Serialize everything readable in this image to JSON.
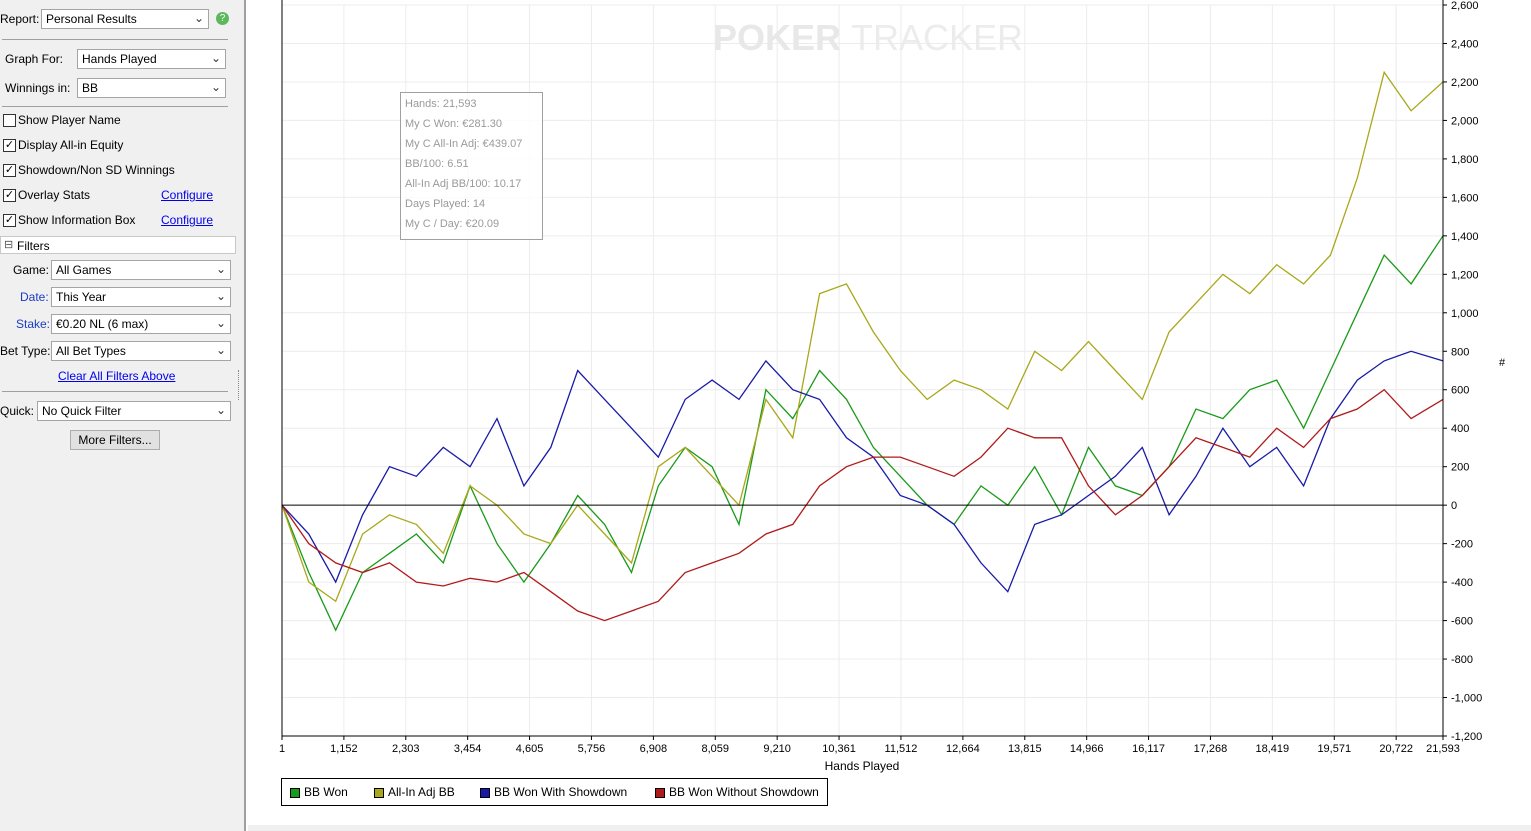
{
  "sidebar": {
    "report_label": "Report:",
    "report_value": "Personal Results",
    "graph_for_label": "Graph For:",
    "graph_for_value": "Hands Played",
    "winnings_in_label": "Winnings in:",
    "winnings_in_value": "BB",
    "checkboxes": [
      {
        "label": "Show Player Name",
        "checked": false
      },
      {
        "label": "Display All-in Equity",
        "checked": true
      },
      {
        "label": "Showdown/Non SD Winnings",
        "checked": true
      },
      {
        "label": "Overlay Stats",
        "checked": true,
        "link": "Configure"
      },
      {
        "label": "Show Information Box",
        "checked": true,
        "link": "Configure"
      }
    ],
    "filters_title": "Filters",
    "game_label": "Game:",
    "game_value": "All Games",
    "date_label": "Date:",
    "date_value": "This Year",
    "stake_label": "Stake:",
    "stake_value": "€0.20 NL (6 max)",
    "bet_type_label": "Bet Type:",
    "bet_type_value": "All Bet Types",
    "clear_filters": "Clear All Filters Above",
    "quick_label": "Quick:",
    "quick_value": "No Quick Filter",
    "more_filters": "More Filters..."
  },
  "watermark": {
    "part1": "POKER",
    "part2": "TRACKER"
  },
  "infobox": [
    "Hands: 21,593",
    "My C Won: €281.30",
    "My C All-In Adj: €439.07",
    "BB/100: 6.51",
    "All-In Adj BB/100: 10.17",
    "Days Played: 14",
    "My C / Day: €20.09"
  ],
  "legend": [
    "BB Won",
    "All-In Adj BB",
    "BB Won With Showdown",
    "BB Won Without Showdown"
  ],
  "colors": {
    "green": "#1a9a1a",
    "olive": "#a8a81a",
    "blue": "#1a1aa8",
    "red": "#b01a1a"
  },
  "chart_data": {
    "type": "line",
    "xlabel": "Hands Played",
    "ylabel": "",
    "x_ticks": [
      "1",
      "1,152",
      "2,303",
      "3,454",
      "4,605",
      "5,756",
      "6,908",
      "8,059",
      "9,210",
      "10,361",
      "11,512",
      "12,664",
      "13,815",
      "14,966",
      "16,117",
      "17,268",
      "18,419",
      "19,571",
      "20,722",
      "21,593"
    ],
    "y_ticks": [
      "2,600",
      "2,400",
      "2,200",
      "2,000",
      "1,800",
      "1,600",
      "1,400",
      "1,200",
      "1,000",
      "800",
      "600",
      "400",
      "200",
      "0",
      "-200",
      "-400",
      "-600",
      "-800",
      "-1,000",
      "-1,200"
    ],
    "xlim": [
      1,
      21593
    ],
    "ylim": [
      -1200,
      2600
    ],
    "right_axis_symbol": "#",
    "x": [
      1,
      500,
      1000,
      1500,
      2000,
      2500,
      3000,
      3500,
      4000,
      4500,
      5000,
      5500,
      6000,
      6500,
      7000,
      7500,
      8000,
      8500,
      9000,
      9500,
      10000,
      10500,
      11000,
      11500,
      12000,
      12500,
      13000,
      13500,
      14000,
      14500,
      15000,
      15500,
      16000,
      16500,
      17000,
      17500,
      18000,
      18500,
      19000,
      19500,
      20000,
      20500,
      21000,
      21593
    ],
    "series": [
      {
        "name": "BB Won",
        "color": "#1a9a1a",
        "values": [
          0,
          -350,
          -650,
          -350,
          -250,
          -150,
          -300,
          100,
          -200,
          -400,
          -200,
          50,
          -100,
          -350,
          100,
          300,
          200,
          -100,
          600,
          450,
          700,
          550,
          300,
          150,
          0,
          -100,
          100,
          0,
          200,
          -50,
          300,
          100,
          50,
          200,
          500,
          450,
          600,
          650,
          400,
          700,
          1000,
          1300,
          1150,
          1400
        ]
      },
      {
        "name": "All-In Adj BB",
        "color": "#a8a81a",
        "values": [
          0,
          -400,
          -500,
          -150,
          -50,
          -100,
          -250,
          100,
          0,
          -150,
          -200,
          0,
          -150,
          -300,
          200,
          300,
          150,
          0,
          550,
          350,
          1100,
          1150,
          900,
          700,
          550,
          650,
          600,
          500,
          800,
          700,
          850,
          700,
          550,
          900,
          1050,
          1200,
          1100,
          1250,
          1150,
          1300,
          1700,
          2250,
          2050,
          2200
        ]
      },
      {
        "name": "BB Won With Showdown",
        "color": "#1a1aa8",
        "values": [
          0,
          -150,
          -400,
          -50,
          200,
          150,
          300,
          200,
          450,
          100,
          300,
          700,
          550,
          400,
          250,
          550,
          650,
          550,
          750,
          600,
          550,
          350,
          250,
          50,
          0,
          -100,
          -300,
          -450,
          -100,
          -50,
          50,
          150,
          300,
          -50,
          150,
          400,
          200,
          300,
          100,
          450,
          650,
          750,
          800,
          750
        ]
      },
      {
        "name": "BB Won Without Showdown",
        "color": "#b01a1a",
        "values": [
          0,
          -200,
          -300,
          -350,
          -300,
          -400,
          -420,
          -380,
          -400,
          -350,
          -450,
          -550,
          -600,
          -550,
          -500,
          -350,
          -300,
          -250,
          -150,
          -100,
          100,
          200,
          250,
          250,
          200,
          150,
          250,
          400,
          350,
          350,
          100,
          -50,
          50,
          200,
          350,
          300,
          250,
          400,
          300,
          450,
          500,
          600,
          450,
          550
        ]
      }
    ]
  }
}
